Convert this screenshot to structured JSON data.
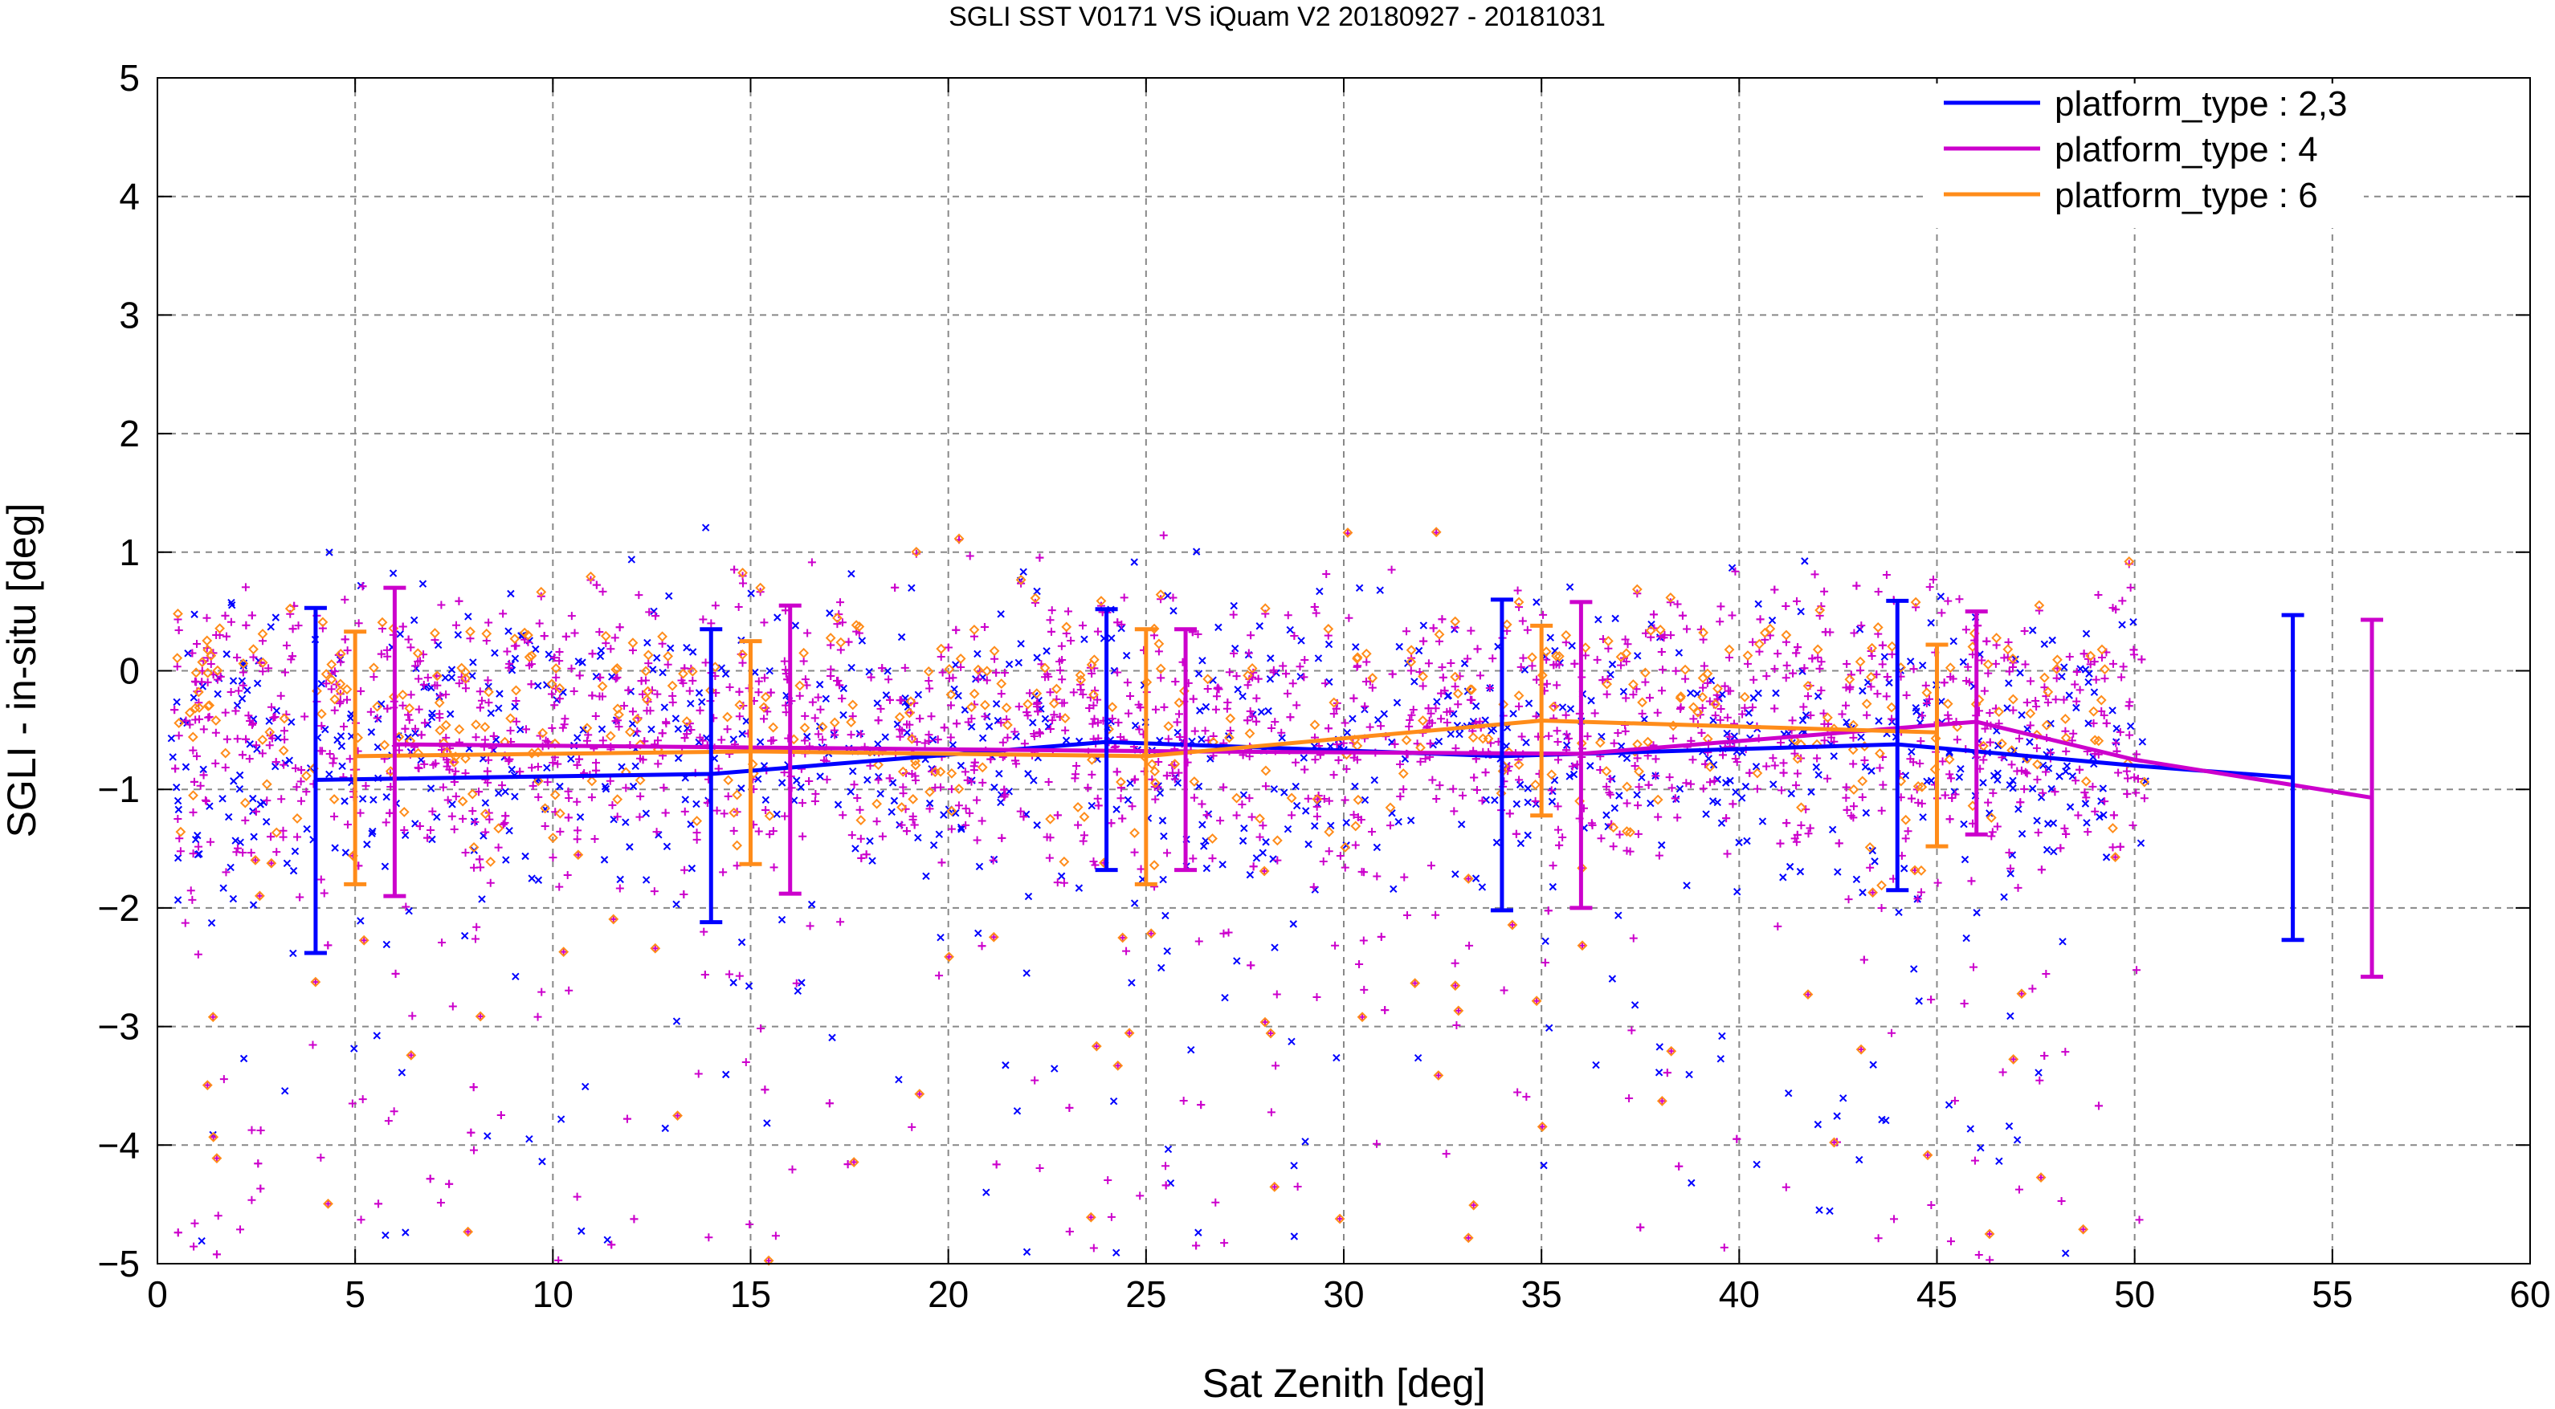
{
  "chart_data": {
    "type": "scatter",
    "title": "SGLI SST V0171 VS iQuam V2 20180927 - 20181031",
    "xlabel": "Sat Zenith [deg]",
    "ylabel": "SGLI - in-situ [deg]",
    "xlim": [
      0,
      60
    ],
    "ylim": [
      -5,
      5
    ],
    "x_ticks": [
      0,
      5,
      10,
      15,
      20,
      25,
      30,
      35,
      40,
      45,
      50,
      55,
      60
    ],
    "y_ticks": [
      -5,
      -4,
      -3,
      -2,
      -1,
      0,
      1,
      2,
      3,
      4,
      5
    ],
    "x_tick_labels": [
      "0",
      "5",
      "10",
      "15",
      "20",
      "25",
      "30",
      "35",
      "40",
      "45",
      "50",
      "55",
      "60"
    ],
    "y_tick_labels": [
      "−5",
      "−4",
      "−3",
      "−2",
      "−1",
      "0",
      "1",
      "2",
      "3",
      "4",
      "5"
    ],
    "grid": true,
    "legend_position": "top-right",
    "series": [
      {
        "name": "platform_type : 2,3",
        "color": "#0000ff",
        "marker": "x",
        "scatter_center_y": -0.6,
        "scatter_spread": 0.9,
        "x": [
          4,
          14,
          24,
          34,
          44,
          54
        ],
        "mean": [
          -0.92,
          -0.87,
          -0.6,
          -0.72,
          -0.62,
          -0.9
        ],
        "error_low": [
          -2.38,
          -2.12,
          -1.68,
          -2.02,
          -1.85,
          -2.27
        ],
        "error_high": [
          0.53,
          0.35,
          0.52,
          0.6,
          0.59,
          0.47
        ],
        "line_x": [
          4,
          14,
          24,
          34,
          44,
          46,
          50,
          54
        ],
        "line_y": [
          -0.92,
          -0.87,
          -0.6,
          -0.72,
          -0.62,
          -0.68,
          -0.8,
          -0.9
        ]
      },
      {
        "name": "platform_type : 4",
        "color": "#cc00cc",
        "marker": "+",
        "scatter_center_y": -0.45,
        "scatter_spread": 0.85,
        "x": [
          6,
          16,
          26,
          36,
          46,
          56
        ],
        "mean": [
          -0.62,
          -0.65,
          -0.68,
          -0.7,
          -0.43,
          -1.07
        ],
        "error_low": [
          -1.9,
          -1.88,
          -1.68,
          -2.0,
          -1.38,
          -2.58
        ],
        "error_high": [
          0.7,
          0.55,
          0.35,
          0.58,
          0.5,
          0.43
        ],
        "line_x": [
          6,
          16,
          26,
          36,
          46,
          50,
          56
        ],
        "line_y": [
          -0.62,
          -0.65,
          -0.68,
          -0.7,
          -0.43,
          -0.75,
          -1.07
        ]
      },
      {
        "name": "platform_type : 6",
        "color": "#ff8c1a",
        "marker": "diamond",
        "scatter_center_y": -0.35,
        "scatter_spread": 0.8,
        "x": [
          5,
          15,
          25,
          35,
          45
        ],
        "mean": [
          -0.72,
          -0.68,
          -0.72,
          -0.42,
          -0.52
        ],
        "error_low": [
          -1.8,
          -1.63,
          -1.8,
          -1.22,
          -1.48
        ],
        "error_high": [
          0.33,
          0.25,
          0.35,
          0.38,
          0.22
        ],
        "line_x": [
          5,
          15,
          25,
          35,
          45
        ],
        "line_y": [
          -0.72,
          -0.68,
          -0.72,
          -0.42,
          -0.52
        ]
      }
    ]
  }
}
